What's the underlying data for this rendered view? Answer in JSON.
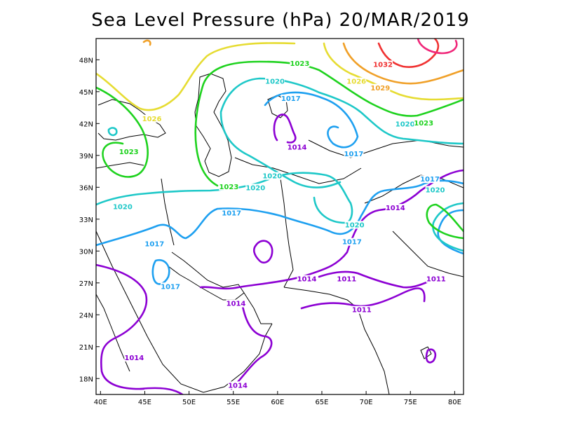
{
  "title": "Sea Level Pressure (hPa) 20/MAR/2019",
  "axes": {
    "x_ticks": [
      "40E",
      "45E",
      "50E",
      "55E",
      "60E",
      "65E",
      "70E",
      "75E",
      "80E"
    ],
    "y_ticks": [
      "48N",
      "45N",
      "42N",
      "39N",
      "36N",
      "33N",
      "30N",
      "27N",
      "24N",
      "21N",
      "18N"
    ],
    "lon_range": [
      39.5,
      81
    ],
    "lat_range": [
      16.5,
      50
    ]
  },
  "colors": {
    "1011": "#8c00d3",
    "1014": "#8c00d3",
    "1017": "#1ea0f0",
    "1020": "#1ec8c8",
    "1023": "#1ed21e",
    "1026": "#e6dc32",
    "1029": "#f0a028",
    "1032": "#f03232",
    "1035": "#f0287a"
  },
  "contour_labels": [
    {
      "text": "1023",
      "lon": 62.5,
      "lat": 47.5,
      "level": "1023"
    },
    {
      "text": "1020",
      "lon": 59.7,
      "lat": 45.8,
      "level": "1020"
    },
    {
      "text": "1017",
      "lon": 61.5,
      "lat": 44.2,
      "level": "1017"
    },
    {
      "text": "1014",
      "lon": 62.2,
      "lat": 39.6,
      "level": "1014"
    },
    {
      "text": "1017",
      "lon": 68.6,
      "lat": 39.0,
      "level": "1017"
    },
    {
      "text": "1026",
      "lon": 68.9,
      "lat": 45.8,
      "level": "1026"
    },
    {
      "text": "1029",
      "lon": 71.6,
      "lat": 45.2,
      "level": "1029"
    },
    {
      "text": "1032",
      "lon": 71.9,
      "lat": 47.4,
      "level": "1032"
    },
    {
      "text": "1020",
      "lon": 74.4,
      "lat": 41.8,
      "level": "1020"
    },
    {
      "text": "1023",
      "lon": 76.5,
      "lat": 41.9,
      "level": "1023"
    },
    {
      "text": "1026",
      "lon": 45.8,
      "lat": 42.3,
      "level": "1026"
    },
    {
      "text": "1023",
      "lon": 43.2,
      "lat": 39.2,
      "level": "1023"
    },
    {
      "text": "1023",
      "lon": 54.5,
      "lat": 35.9,
      "level": "1023"
    },
    {
      "text": "1020",
      "lon": 57.5,
      "lat": 35.8,
      "level": "1020"
    },
    {
      "text": "1020",
      "lon": 59.4,
      "lat": 36.9,
      "level": "1020"
    },
    {
      "text": "1020",
      "lon": 42.5,
      "lat": 34.0,
      "level": "1020"
    },
    {
      "text": "1017",
      "lon": 54.8,
      "lat": 33.4,
      "level": "1017"
    },
    {
      "text": "1020",
      "lon": 68.7,
      "lat": 32.3,
      "level": "1020"
    },
    {
      "text": "1017",
      "lon": 68.4,
      "lat": 30.7,
      "level": "1017"
    },
    {
      "text": "1017",
      "lon": 46.1,
      "lat": 30.5,
      "level": "1017"
    },
    {
      "text": "1017",
      "lon": 77.2,
      "lat": 36.6,
      "level": "1017"
    },
    {
      "text": "1020",
      "lon": 77.8,
      "lat": 35.6,
      "level": "1020"
    },
    {
      "text": "1014",
      "lon": 73.3,
      "lat": 33.9,
      "level": "1014"
    },
    {
      "text": "1017",
      "lon": 47.9,
      "lat": 26.5,
      "level": "1017"
    },
    {
      "text": "1014",
      "lon": 55.3,
      "lat": 24.9,
      "level": "1014"
    },
    {
      "text": "1014",
      "lon": 63.3,
      "lat": 27.2,
      "level": "1014"
    },
    {
      "text": "1011",
      "lon": 67.8,
      "lat": 27.2,
      "level": "1011"
    },
    {
      "text": "1011",
      "lon": 69.5,
      "lat": 24.3,
      "level": "1011"
    },
    {
      "text": "1011",
      "lon": 77.9,
      "lat": 27.2,
      "level": "1011"
    },
    {
      "text": "1014",
      "lon": 43.8,
      "lat": 19.8,
      "level": "1014"
    },
    {
      "text": "1014",
      "lon": 55.5,
      "lat": 17.2,
      "level": "1014"
    }
  ]
}
